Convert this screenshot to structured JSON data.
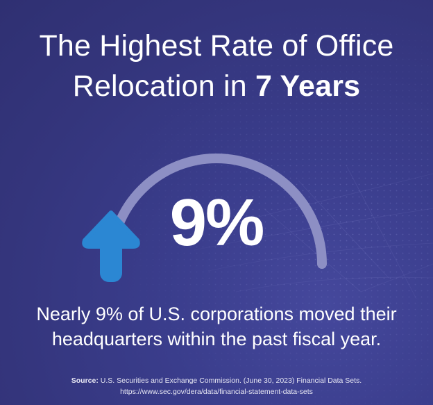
{
  "title": {
    "line1": "The Highest Rate of Office",
    "line2_prefix": "Relocation in ",
    "line2_bold": "7 Years"
  },
  "stat": {
    "value": "9%",
    "gauge_fraction": 0.09,
    "icon": "up-arrow-icon"
  },
  "description": {
    "line1": "Nearly 9% of U.S. corporations moved their",
    "line2": "headquarters within the past fiscal year."
  },
  "source": {
    "label": "Source:",
    "text": " U.S. Securities and Exchange Commission. (June 30, 2023) Financial Data Sets.",
    "url": "https://www.sec.gov/dera/data/financial-statement-data-sets"
  },
  "colors": {
    "background": "#3a3d8c",
    "gauge_track": "#8d8fc4",
    "arrow": "#2b87d3",
    "text": "#ffffff"
  }
}
